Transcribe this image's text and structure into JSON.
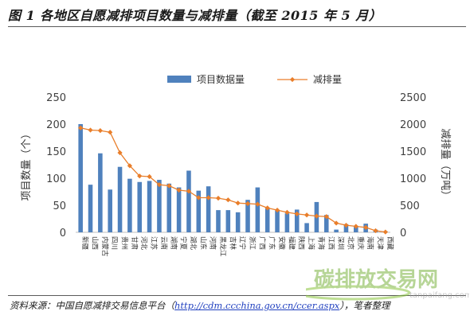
{
  "figure": {
    "title": "图 1   各地区自愿减排项目数量与减排量（截至 2015 年 5 月）"
  },
  "source": {
    "label": "资料来源：",
    "org": "中国自愿减排交易信息平台（",
    "link": "http://cdm.ccchina.gov.cn/ccer.aspx",
    "suffix": "），笔者整理"
  },
  "watermark": {
    "text": "碳排放交易网",
    "sub": "tanpaifang.com"
  },
  "chart_data": {
    "type": "bar",
    "categories": [
      "新疆",
      "山西",
      "内蒙古",
      "四川",
      "贵州",
      "甘肃",
      "河北",
      "江苏",
      "云南",
      "湖南",
      "宁夏",
      "湖北",
      "山东",
      "河南",
      "黑龙江",
      "吉林",
      "辽宁",
      "浙江",
      "广西",
      "广东",
      "安徽",
      "福建",
      "陕西",
      "上海",
      "青海",
      "江西",
      "深圳",
      "北京",
      "重庆",
      "海南",
      "天津",
      "西藏"
    ],
    "series": [
      {
        "name": "项目数据量",
        "axis": "left",
        "type": "bar",
        "color": "#4f81bd",
        "values": [
          200,
          88,
          146,
          79,
          121,
          99,
          93,
          95,
          97,
          90,
          83,
          114,
          77,
          85,
          41,
          41,
          37,
          60,
          83,
          44,
          40,
          35,
          42,
          17,
          56,
          32,
          5,
          15,
          10,
          16,
          5,
          2
        ]
      },
      {
        "name": "减排量",
        "axis": "right",
        "type": "line",
        "color": "#e97e2a",
        "values": [
          1930,
          1890,
          1880,
          1850,
          1470,
          1230,
          1040,
          1030,
          880,
          860,
          780,
          760,
          640,
          640,
          630,
          600,
          540,
          530,
          520,
          450,
          410,
          370,
          340,
          320,
          300,
          290,
          170,
          130,
          110,
          90,
          30,
          5
        ]
      }
    ],
    "ylabel": "项目数量（个）",
    "y2label": "减排量（万吨）",
    "ylim": [
      0,
      250
    ],
    "y2lim": [
      0,
      2500
    ],
    "yticks": [
      "0",
      "50",
      "100",
      "150",
      "200",
      "250"
    ],
    "y2ticks": [
      "0",
      "500",
      "1000",
      "1500",
      "2000",
      "2500"
    ],
    "grid": false,
    "legend_position": "top-center"
  }
}
